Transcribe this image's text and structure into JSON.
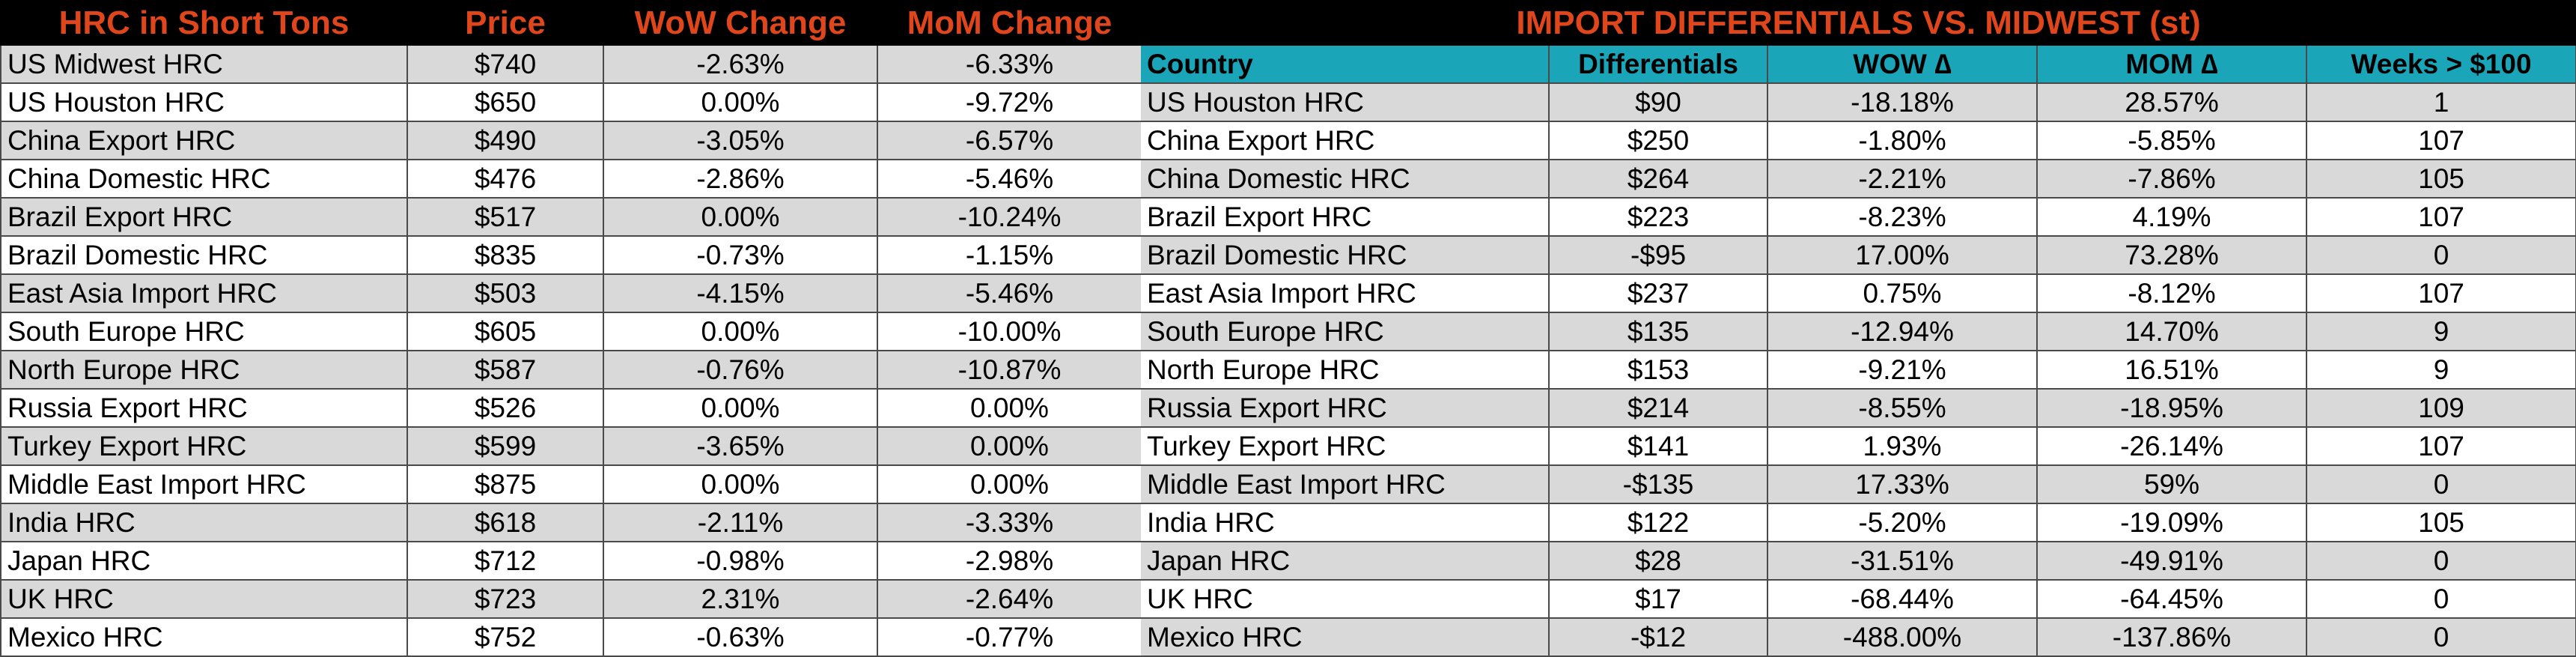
{
  "left": {
    "headers": [
      "HRC in Short Tons",
      "Price",
      "WoW Change",
      "MoM Change"
    ],
    "rows": [
      [
        "US Midwest HRC",
        "$740",
        "-2.63%",
        "-6.33%"
      ],
      [
        "US Houston HRC",
        "$650",
        "0.00%",
        "-9.72%"
      ],
      [
        "China Export HRC",
        "$490",
        "-3.05%",
        "-6.57%"
      ],
      [
        "China Domestic HRC",
        "$476",
        "-2.86%",
        "-5.46%"
      ],
      [
        "Brazil Export HRC",
        "$517",
        "0.00%",
        "-10.24%"
      ],
      [
        "Brazil Domestic HRC",
        "$835",
        "-0.73%",
        "-1.15%"
      ],
      [
        "East Asia Import HRC",
        "$503",
        "-4.15%",
        "-5.46%"
      ],
      [
        "South Europe HRC",
        "$605",
        "0.00%",
        "-10.00%"
      ],
      [
        "North Europe HRC",
        "$587",
        "-0.76%",
        "-10.87%"
      ],
      [
        "Russia Export HRC",
        "$526",
        "0.00%",
        "0.00%"
      ],
      [
        "Turkey Export HRC",
        "$599",
        "-3.65%",
        "0.00%"
      ],
      [
        "Middle East Import HRC",
        "$875",
        "0.00%",
        "0.00%"
      ],
      [
        "India HRC",
        "$618",
        "-2.11%",
        "-3.33%"
      ],
      [
        "Japan HRC",
        "$712",
        "-0.98%",
        "-2.98%"
      ],
      [
        "UK HRC",
        "$723",
        "2.31%",
        "-2.64%"
      ],
      [
        "Mexico HRC",
        "$752",
        "-0.63%",
        "-0.77%"
      ]
    ]
  },
  "right": {
    "title": "IMPORT DIFFERENTIALS VS. MIDWEST (st)",
    "headers": [
      "Country",
      "Differentials",
      "WOW ∆",
      "MOM ∆",
      "Weeks > $100"
    ],
    "rows": [
      [
        "US Houston HRC",
        "$90",
        "-18.18%",
        "28.57%",
        "1"
      ],
      [
        "China Export HRC",
        "$250",
        "-1.80%",
        "-5.85%",
        "107"
      ],
      [
        "China Domestic HRC",
        "$264",
        "-2.21%",
        "-7.86%",
        "105"
      ],
      [
        "Brazil Export HRC",
        "$223",
        "-8.23%",
        "4.19%",
        "107"
      ],
      [
        "Brazil Domestic HRC",
        "-$95",
        "17.00%",
        "73.28%",
        "0"
      ],
      [
        "East Asia Import HRC",
        "$237",
        "0.75%",
        "-8.12%",
        "107"
      ],
      [
        "South Europe HRC",
        "$135",
        "-12.94%",
        "14.70%",
        "9"
      ],
      [
        "North Europe HRC",
        "$153",
        "-9.21%",
        "16.51%",
        "9"
      ],
      [
        "Russia Export HRC",
        "$214",
        "-8.55%",
        "-18.95%",
        "109"
      ],
      [
        "Turkey Export HRC",
        "$141",
        "1.93%",
        "-26.14%",
        "107"
      ],
      [
        "Middle East Import HRC",
        "-$135",
        "17.33%",
        "59%",
        "0"
      ],
      [
        "India HRC",
        "$122",
        "-5.20%",
        "-19.09%",
        "105"
      ],
      [
        "Japan HRC",
        "$28",
        "-31.51%",
        "-49.91%",
        "0"
      ],
      [
        "UK HRC",
        "$17",
        "-68.44%",
        "-64.45%",
        "0"
      ],
      [
        "Mexico HRC",
        "-$12",
        "-488.00%",
        "-137.86%",
        "0"
      ]
    ]
  }
}
